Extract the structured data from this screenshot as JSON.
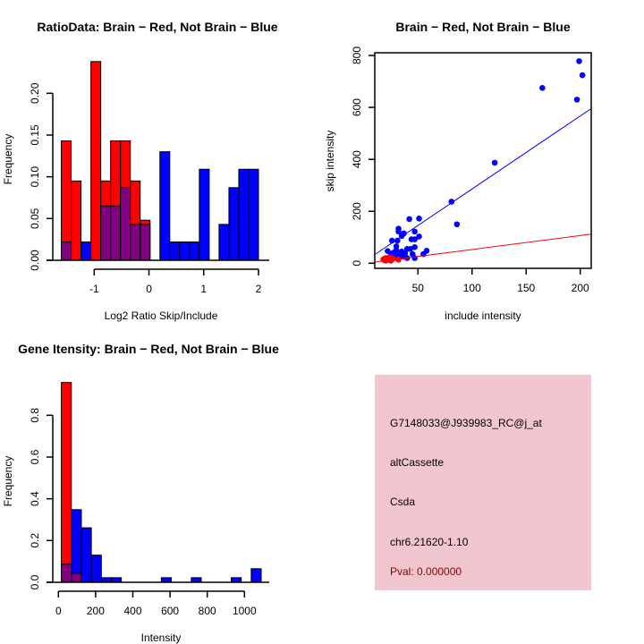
{
  "colors": {
    "red": "#ff0000",
    "blue": "#0000ff",
    "overlap": "#800080",
    "panel_bg": "#f2c6cf",
    "pval": "#8b0000"
  },
  "chart_data": [
    {
      "type": "bar",
      "subtype": "overlaid-histogram",
      "title": "RatioData: Brain − Red, Not Brain − Blue",
      "xlabel": "Log2 Ratio Skip/Include",
      "ylabel": "Frequency",
      "bin_start": -1.6,
      "bin_width": 0.18,
      "xticks": [
        "-1",
        "0",
        "1",
        "2"
      ],
      "xtick_values": [
        -1,
        0,
        1,
        2
      ],
      "yticks": [
        "0.00",
        "0.05",
        "0.10",
        "0.15",
        "0.20"
      ],
      "ytick_values": [
        0,
        0.05,
        0.1,
        0.15,
        0.2
      ],
      "xlim": [
        -1.75,
        2.2
      ],
      "ylim": [
        0,
        0.245
      ],
      "series": [
        {
          "name": "Brain",
          "color": "red",
          "values": [
            0.143,
            0.095,
            0,
            0.238,
            0.095,
            0.143,
            0.143,
            0.095,
            0.048,
            0,
            0,
            0,
            0,
            0,
            0,
            0,
            0,
            0,
            0,
            0
          ]
        },
        {
          "name": "Not Brain",
          "color": "blue",
          "values": [
            0.022,
            0,
            0.022,
            0,
            0.065,
            0.065,
            0.087,
            0.043,
            0.043,
            0,
            0.13,
            0.022,
            0.022,
            0.022,
            0.109,
            0,
            0.043,
            0.087,
            0.109,
            0.109
          ]
        }
      ]
    },
    {
      "type": "scatter",
      "title": "Brain − Red, Not Brain − Blue",
      "xlabel": "include intensity",
      "ylabel": "skip intensity",
      "xticks": [
        "50",
        "100",
        "150",
        "200"
      ],
      "xtick_values": [
        50,
        100,
        150,
        200
      ],
      "yticks": [
        "0",
        "200",
        "400",
        "600",
        "800"
      ],
      "ytick_values": [
        0,
        200,
        400,
        600,
        800
      ],
      "xlim": [
        10.7,
        210
      ],
      "ylim": [
        -20,
        810
      ],
      "series": [
        {
          "name": "Not Brain",
          "color": "blue",
          "points": [
            [
              199,
              778
            ],
            [
              202,
              724
            ],
            [
              165,
              675
            ],
            [
              197,
              630
            ],
            [
              121,
              387
            ],
            [
              81,
              237
            ],
            [
              86,
              150
            ],
            [
              42,
              170
            ],
            [
              51,
              172
            ],
            [
              32,
              133
            ],
            [
              32,
              122
            ],
            [
              37,
              115
            ],
            [
              35,
              105
            ],
            [
              47,
              122
            ],
            [
              51,
              103
            ],
            [
              47,
              92
            ],
            [
              44,
              92
            ],
            [
              26,
              87
            ],
            [
              31,
              87
            ],
            [
              22,
              47
            ],
            [
              30,
              65
            ],
            [
              30,
              50
            ],
            [
              27,
              40
            ],
            [
              35,
              45
            ],
            [
              40,
              55
            ],
            [
              43,
              55
            ],
            [
              47,
              62
            ],
            [
              58,
              48
            ],
            [
              55,
              35
            ],
            [
              47,
              20
            ],
            [
              40,
              20
            ],
            [
              33,
              30
            ],
            [
              36,
              25
            ],
            [
              28,
              20
            ],
            [
              25,
              30
            ],
            [
              45,
              35
            ],
            [
              38,
              38
            ],
            [
              30,
              35
            ]
          ],
          "fit_line": [
            [
              10.7,
              35
            ],
            [
              210,
              595
            ]
          ]
        },
        {
          "name": "Brain",
          "color": "red",
          "points": [
            [
              18,
              15
            ],
            [
              20,
              20
            ],
            [
              22,
              12
            ],
            [
              25,
              10
            ],
            [
              20,
              10
            ],
            [
              27,
              18
            ],
            [
              32,
              14
            ],
            [
              23,
              22
            ],
            [
              19,
              12
            ]
          ],
          "fit_line": [
            [
              10.7,
              5
            ],
            [
              210,
              112
            ]
          ]
        }
      ]
    },
    {
      "type": "bar",
      "subtype": "overlaid-histogram",
      "title": "Gene Itensity: Brain − Red, Not Brain − Blue",
      "xlabel": "Intensity",
      "ylabel": "Frequency",
      "bin_start": 16,
      "bin_width": 53.7,
      "xticks": [
        "0",
        "200",
        "400",
        "600",
        "800",
        "1000"
      ],
      "xtick_values": [
        0,
        200,
        400,
        600,
        800,
        1000
      ],
      "yticks": [
        "0.0",
        "0.2",
        "0.4",
        "0.6",
        "0.8"
      ],
      "ytick_values": [
        0,
        0.2,
        0.4,
        0.6,
        0.8
      ],
      "xlim": [
        -30,
        1120
      ],
      "ylim": [
        0,
        0.98
      ],
      "series": [
        {
          "name": "Brain",
          "color": "red",
          "values": [
            0.957,
            0.043,
            0,
            0,
            0,
            0,
            0,
            0,
            0,
            0,
            0,
            0,
            0,
            0,
            0,
            0,
            0,
            0,
            0,
            0
          ]
        },
        {
          "name": "Not Brain",
          "color": "blue",
          "values": [
            0.087,
            0.348,
            0.261,
            0.13,
            0.022,
            0.022,
            0,
            0,
            0,
            0,
            0.022,
            0,
            0,
            0.022,
            0,
            0,
            0,
            0.022,
            0,
            0.065
          ]
        }
      ]
    }
  ],
  "info": {
    "probe_id": "G7148033@J939983_RC@j_at",
    "event_type": "altCassette",
    "gene": "Csda",
    "location": "chr6.21620-1.10",
    "pval": "Pval: 0.000000"
  }
}
